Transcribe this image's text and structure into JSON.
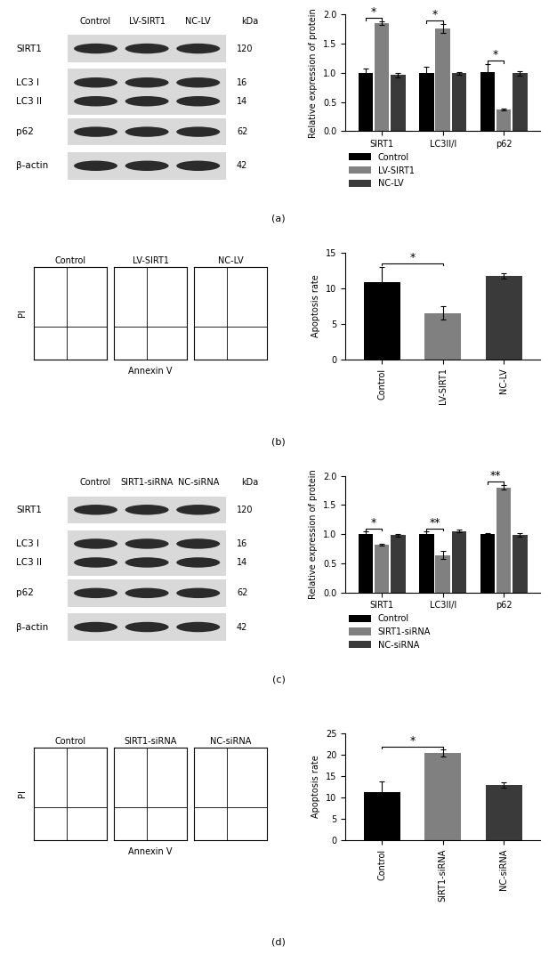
{
  "panel_labels": [
    "(a)",
    "(b)",
    "(c)",
    "(d)"
  ],
  "blots": [
    {
      "lanes": [
        "Control",
        "LV-SIRT1",
        "NC-LV"
      ],
      "unit": "kDa",
      "rows": [
        {
          "label": "SIRT1",
          "kda": 120
        },
        {
          "label": "LC3 I",
          "kda": 16
        },
        {
          "label": "LC3 II",
          "kda": 14
        },
        {
          "label": "p62",
          "kda": 62
        },
        {
          "label": "β-actin",
          "kda": 42
        }
      ]
    },
    {
      "lanes": [
        "Control",
        "SIRT1-siRNA",
        "NC-siRNA"
      ],
      "unit": "kDa",
      "rows": [
        {
          "label": "SIRT1",
          "kda": 120
        },
        {
          "label": "LC3 I",
          "kda": 16
        },
        {
          "label": "LC3 II",
          "kda": 14
        },
        {
          "label": "p62",
          "kda": 62
        },
        {
          "label": "β-actin",
          "kda": 42
        }
      ]
    }
  ],
  "flow": [
    {
      "groups": [
        "Control",
        "LV-SIRT1",
        "NC-LV"
      ],
      "y_label": "PI",
      "x_label": "Annexin V"
    },
    {
      "groups": [
        "Control",
        "SIRT1-siRNA",
        "NC-siRNA"
      ],
      "y_label": "PI",
      "x_label": "Annexin V"
    }
  ],
  "chart_data": [
    {
      "type": "bar",
      "y_label": "Relative expression of protein",
      "categories": [
        "SIRT1",
        "LC3II/I",
        "p62"
      ],
      "series": [
        {
          "name": "Control",
          "color": "#000000",
          "values": [
            1.0,
            1.0,
            1.02
          ],
          "errors": [
            0.07,
            0.1,
            0.13
          ]
        },
        {
          "name": "LV-SIRT1",
          "color": "#808080",
          "values": [
            1.85,
            1.76,
            0.37
          ],
          "errors": [
            0.03,
            0.08,
            0.02
          ]
        },
        {
          "name": "NC-LV",
          "color": "#3a3a3a",
          "values": [
            0.96,
            0.99,
            0.99
          ],
          "errors": [
            0.04,
            0.02,
            0.04
          ]
        }
      ],
      "ylim": [
        0,
        2.0
      ],
      "yticks": [
        {
          "value": 0,
          "label": "0.0"
        },
        0.5,
        {
          "value": 1,
          "label": "1.0"
        },
        1.5,
        {
          "value": 2,
          "label": "2.0"
        }
      ],
      "legend": "below",
      "significance": [
        {
          "category": "SIRT1",
          "groups": [
            "Control",
            "LV-SIRT1"
          ],
          "label": "*"
        },
        {
          "category": "LC3II/I",
          "groups": [
            "Control",
            "LV-SIRT1"
          ],
          "label": "*"
        },
        {
          "category": "p62",
          "groups": [
            "Control",
            "LV-SIRT1"
          ],
          "label": "*"
        }
      ]
    },
    {
      "type": "bar",
      "y_label": "Apoptosis rate",
      "categories": [
        "Control",
        "LV-SIRT1",
        "NC-LV"
      ],
      "values": [
        10.8,
        6.5,
        11.7
      ],
      "errors": [
        2.2,
        0.9,
        0.4
      ],
      "colors": [
        "#000000",
        "#808080",
        "#3a3a3a"
      ],
      "ylim": [
        0,
        15
      ],
      "yticks": [
        0,
        5,
        10,
        15
      ],
      "significance": [
        {
          "groups": [
            "Control",
            "LV-SIRT1"
          ],
          "label": "*"
        }
      ]
    },
    {
      "type": "bar",
      "y_label": "Relative expression of protein",
      "categories": [
        "SIRT1",
        "LC3II/I",
        "p62"
      ],
      "series": [
        {
          "name": "Control",
          "color": "#000000",
          "values": [
            1.0,
            1.0,
            1.0
          ],
          "errors": [
            0.04,
            0.04,
            0.02
          ]
        },
        {
          "name": "SIRT1-siRNA",
          "color": "#808080",
          "values": [
            0.82,
            0.64,
            1.8
          ],
          "errors": [
            0.02,
            0.07,
            0.04
          ]
        },
        {
          "name": "NC-siRNA",
          "color": "#3a3a3a",
          "values": [
            0.98,
            1.05,
            0.99
          ],
          "errors": [
            0.02,
            0.02,
            0.03
          ]
        }
      ],
      "ylim": [
        0,
        2.0
      ],
      "yticks": [
        {
          "value": 0,
          "label": "0.0"
        },
        0.5,
        {
          "value": 1,
          "label": "1.0"
        },
        1.5,
        {
          "value": 2,
          "label": "2.0"
        }
      ],
      "legend": "below",
      "significance": [
        {
          "category": "SIRT1",
          "groups": [
            "Control",
            "SIRT1-siRNA"
          ],
          "label": "*"
        },
        {
          "category": "LC3II/I",
          "groups": [
            "Control",
            "SIRT1-siRNA"
          ],
          "label": "**"
        },
        {
          "category": "p62",
          "groups": [
            "Control",
            "SIRT1-siRNA"
          ],
          "label": "**"
        }
      ]
    },
    {
      "type": "bar",
      "y_label": "Apoptosis rate",
      "categories": [
        "Control",
        "SIRT1-siRNA",
        "NC-siRNA"
      ],
      "values": [
        11.2,
        20.3,
        12.8
      ],
      "errors": [
        2.5,
        0.8,
        0.6
      ],
      "colors": [
        "#000000",
        "#808080",
        "#3a3a3a"
      ],
      "ylim": [
        0,
        25
      ],
      "yticks": [
        0,
        5,
        10,
        15,
        20,
        25
      ],
      "significance": [
        {
          "groups": [
            "Control",
            "SIRT1-siRNA"
          ],
          "label": "*"
        }
      ]
    }
  ]
}
